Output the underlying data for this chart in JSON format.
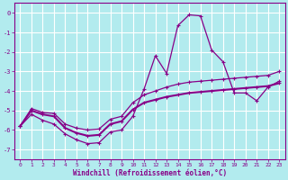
{
  "xlabel": "Windchill (Refroidissement éolien,°C)",
  "background_color": "#b2ebee",
  "grid_color": "#c8e8eb",
  "line_color": "#880088",
  "xlim": [
    -0.5,
    23.5
  ],
  "ylim": [
    -7.5,
    0.5
  ],
  "xticks": [
    0,
    1,
    2,
    3,
    4,
    5,
    6,
    7,
    8,
    9,
    10,
    11,
    12,
    13,
    14,
    15,
    16,
    17,
    18,
    19,
    20,
    21,
    22,
    23
  ],
  "yticks": [
    0,
    -1,
    -2,
    -3,
    -4,
    -5,
    -6,
    -7
  ],
  "curve1_x": [
    0,
    1,
    2,
    3,
    4,
    5,
    6,
    7,
    8,
    9,
    10,
    11,
    12,
    13,
    14,
    15,
    16,
    17,
    18,
    19,
    20,
    21,
    22,
    23
  ],
  "curve1_y": [
    -5.8,
    -5.2,
    -5.5,
    -5.7,
    -6.2,
    -6.5,
    -6.7,
    -6.65,
    -6.1,
    -6.0,
    -5.3,
    -3.9,
    -2.2,
    -3.1,
    -0.65,
    -0.1,
    -0.15,
    -1.9,
    -2.5,
    -4.1,
    -4.1,
    -4.5,
    -3.8,
    -3.5
  ],
  "curve2_x": [
    0,
    1,
    2,
    3,
    4,
    5,
    6,
    7,
    8,
    9,
    10,
    11,
    12,
    13,
    14,
    15,
    16,
    17,
    18,
    19,
    20,
    21,
    22,
    23
  ],
  "curve2_y": [
    -5.8,
    -5.0,
    -5.2,
    -5.3,
    -5.9,
    -6.15,
    -6.3,
    -6.25,
    -5.7,
    -5.55,
    -4.95,
    -4.6,
    -4.45,
    -4.3,
    -4.2,
    -4.1,
    -4.05,
    -4.0,
    -3.95,
    -3.9,
    -3.85,
    -3.8,
    -3.75,
    -3.6
  ],
  "curve3_x": [
    0,
    1,
    2,
    3,
    4,
    5,
    6,
    7,
    8,
    9,
    10,
    11,
    12,
    13,
    14,
    15,
    16,
    17,
    18,
    19,
    20,
    21,
    22,
    23
  ],
  "curve3_y": [
    -5.8,
    -4.9,
    -5.1,
    -5.15,
    -5.7,
    -5.9,
    -6.0,
    -5.95,
    -5.45,
    -5.3,
    -4.6,
    -4.2,
    -4.0,
    -3.8,
    -3.65,
    -3.55,
    -3.5,
    -3.45,
    -3.4,
    -3.35,
    -3.3,
    -3.25,
    -3.2,
    -3.0
  ]
}
